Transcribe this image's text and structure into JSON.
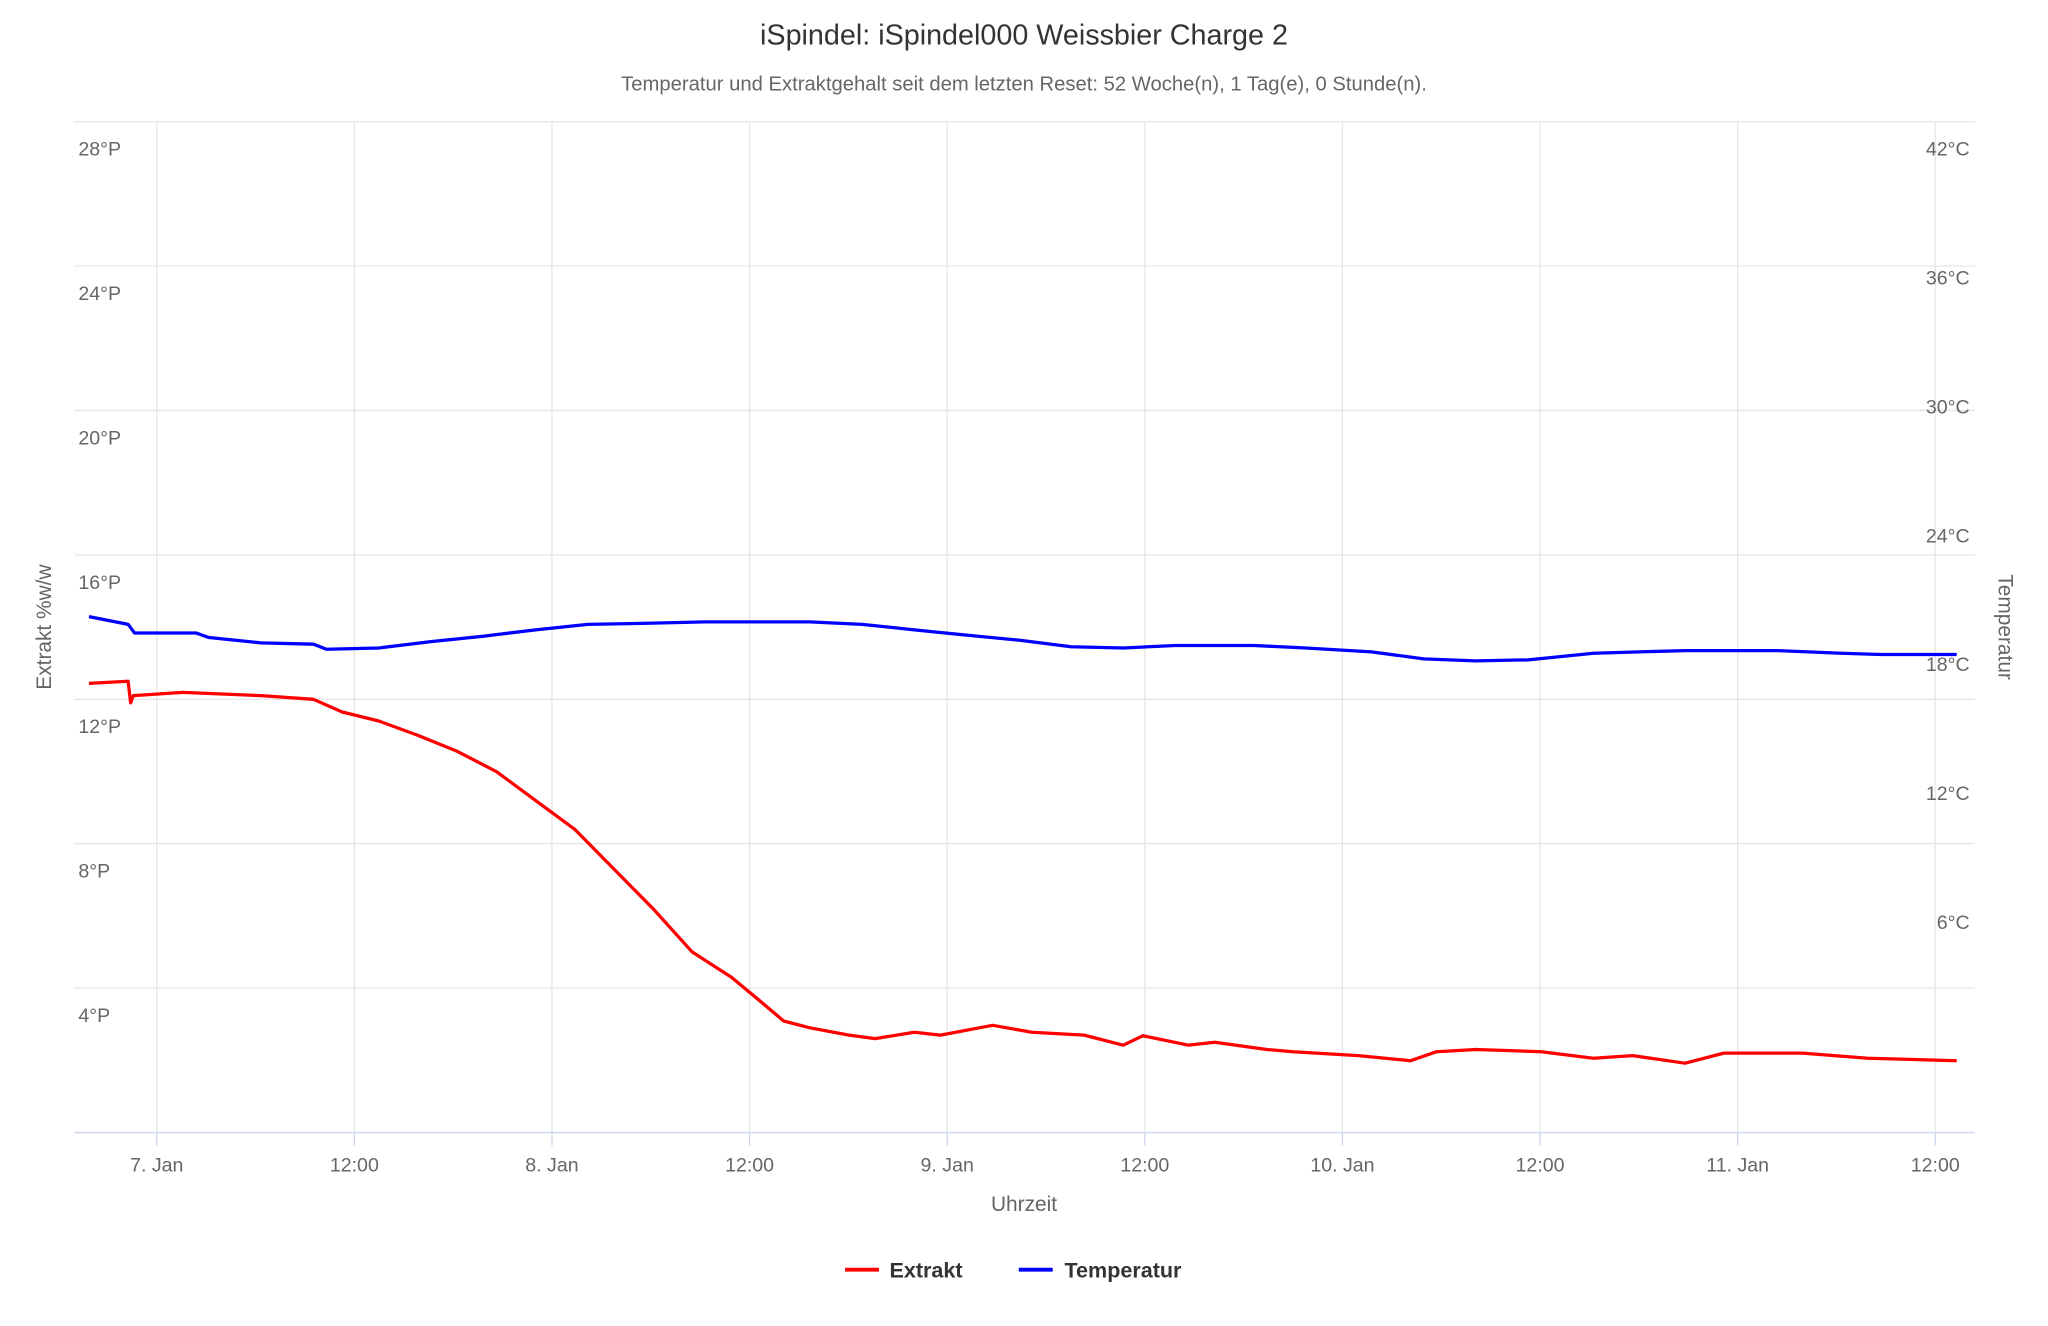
{
  "chart_data": {
    "type": "line",
    "title": "iSpindel: iSpindel000 Weissbier Charge 2",
    "subtitle": "Temperatur und Extraktgehalt seit dem letzten Reset: 52 Woche(n), 1 Tag(e), 0 Stunde(n).",
    "xlabel": "Uhrzeit",
    "x_units": "hours since 7. Jan 00:00",
    "xlim": [
      -8.25,
      110
    ],
    "x_ticks": [
      {
        "value": 0,
        "label": "7. Jan"
      },
      {
        "value": 12,
        "label": "12:00"
      },
      {
        "value": 24,
        "label": "8. Jan"
      },
      {
        "value": 36,
        "label": "12:00"
      },
      {
        "value": 48,
        "label": "9. Jan"
      },
      {
        "value": 60,
        "label": "12:00"
      },
      {
        "value": 72,
        "label": "10. Jan"
      },
      {
        "value": 84,
        "label": "12:00"
      },
      {
        "value": 96,
        "label": "11. Jan"
      },
      {
        "value": 108,
        "label": "12:00"
      }
    ],
    "y_left": {
      "label": "Extrakt %w/w",
      "lim": [
        0,
        28
      ],
      "ticks": [
        {
          "value": 4,
          "label": "4°P"
        },
        {
          "value": 8,
          "label": "8°P"
        },
        {
          "value": 12,
          "label": "12°P"
        },
        {
          "value": 16,
          "label": "16°P"
        },
        {
          "value": 20,
          "label": "20°P"
        },
        {
          "value": 24,
          "label": "24°P"
        },
        {
          "value": 28,
          "label": "28°P"
        }
      ]
    },
    "y_right": {
      "label": "Temperatur",
      "lim": [
        -5.05,
        42
      ],
      "ticks": [
        {
          "value": 6,
          "label": "6°C"
        },
        {
          "value": 12,
          "label": "12°C"
        },
        {
          "value": 18,
          "label": "18°C"
        },
        {
          "value": 24,
          "label": "24°C"
        },
        {
          "value": 30,
          "label": "30°C"
        },
        {
          "value": 36,
          "label": "36°C"
        },
        {
          "value": 42,
          "label": "42°C"
        }
      ]
    },
    "grid": true,
    "legend_position": "bottom-center",
    "series": [
      {
        "name": "Extrakt",
        "axis": "left",
        "color": "#ff0000",
        "x": [
          -4.12,
          -1.74,
          -1.59,
          -1.43,
          1.59,
          6.34,
          9.52,
          11.26,
          13.48,
          15.86,
          18.24,
          20.62,
          23.0,
          25.38,
          27.76,
          30.14,
          32.52,
          34.9,
          36.48,
          38.07,
          39.66,
          42.04,
          43.62,
          46.0,
          47.59,
          50.76,
          53.14,
          56.31,
          58.69,
          59.88,
          62.66,
          64.24,
          67.41,
          69.0,
          72.97,
          76.14,
          77.72,
          80.1,
          84.07,
          87.24,
          89.62,
          92.8,
          95.17,
          99.93,
          103.9,
          109.3
        ],
        "y": [
          12.44,
          12.5,
          11.9,
          12.1,
          12.19,
          12.1,
          12.0,
          11.65,
          11.4,
          11.0,
          10.56,
          10.0,
          9.2,
          8.4,
          7.3,
          6.2,
          5.0,
          4.3,
          3.7,
          3.09,
          2.9,
          2.7,
          2.6,
          2.78,
          2.7,
          2.97,
          2.78,
          2.7,
          2.42,
          2.68,
          2.42,
          2.5,
          2.3,
          2.24,
          2.13,
          1.99,
          2.24,
          2.3,
          2.24,
          2.06,
          2.13,
          1.92,
          2.2,
          2.2,
          2.06,
          1.99
        ]
      },
      {
        "name": "Temperatur",
        "axis": "right",
        "color": "#0000ff",
        "x": [
          -4.12,
          -1.74,
          -1.35,
          2.38,
          3.17,
          6.34,
          9.52,
          10.31,
          13.48,
          16.65,
          19.83,
          23.0,
          26.17,
          30.14,
          33.31,
          39.66,
          42.83,
          46.0,
          49.17,
          52.35,
          55.52,
          58.69,
          61.86,
          66.62,
          69.79,
          73.76,
          76.93,
          80.1,
          83.28,
          87.24,
          92.8,
          98.35,
          102.3,
          104.7,
          109.3
        ],
        "y": [
          18.96,
          18.6,
          18.2,
          18.2,
          17.99,
          17.74,
          17.68,
          17.44,
          17.5,
          17.8,
          18.05,
          18.35,
          18.6,
          18.66,
          18.72,
          18.72,
          18.6,
          18.35,
          18.1,
          17.87,
          17.56,
          17.5,
          17.62,
          17.62,
          17.5,
          17.32,
          17.0,
          16.9,
          16.95,
          17.26,
          17.38,
          17.38,
          17.26,
          17.2,
          17.2
        ]
      }
    ]
  }
}
